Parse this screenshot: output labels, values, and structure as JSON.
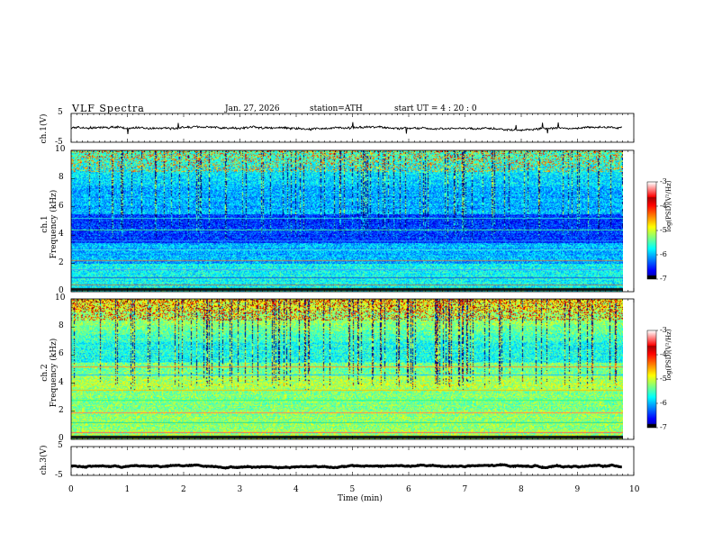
{
  "header": {
    "title": "VLF  Spectra",
    "date": "Jan. 27, 2026",
    "station": "station=ATH",
    "start": "start  UT  =   4  : 20 : 0"
  },
  "chart_data": [
    {
      "type": "line",
      "panel": "ch.1 voltage",
      "ylabel": "ch.1(V)",
      "ylim": [
        -5,
        5
      ],
      "yticks": [
        "5",
        "-5"
      ],
      "xlim": [
        0,
        10
      ],
      "description_values": {
        "baseline_level": 0,
        "noise_amplitude": 0.6
      }
    },
    {
      "type": "heatmap",
      "panel": "ch.1 spectrogram",
      "ylabel": "ch.1 Frequency (kHz)",
      "ylabel_top": "ch.1",
      "ylabel_bottom": "Frequency (kHz)",
      "ylim": [
        0,
        10
      ],
      "yticks": [
        "0",
        "2",
        "4",
        "6",
        "8",
        "10"
      ],
      "xlim": [
        0,
        10
      ],
      "data_end_min": 9.8,
      "colorbar": {
        "label": "log(PSD)(V²/Hz)",
        "ticks": [
          "-3",
          "-4",
          "-5",
          "-6",
          "-7"
        ],
        "range": [
          -7,
          -3
        ]
      }
    },
    {
      "type": "heatmap",
      "panel": "ch.2 spectrogram",
      "ylabel": "ch.2 Frequency (kHz)",
      "ylabel_top": "ch.2",
      "ylabel_bottom": "Frequency (kHz)",
      "ylim": [
        0,
        10
      ],
      "yticks": [
        "0",
        "2",
        "4",
        "6",
        "8",
        "10"
      ],
      "xlim": [
        0,
        10
      ],
      "data_end_min": 9.8,
      "colorbar": {
        "label": "log(PSD)(V²/Hz)",
        "ticks": [
          "-3",
          "-4",
          "-5",
          "-6",
          "-7"
        ],
        "range": [
          -7,
          -3
        ]
      }
    },
    {
      "type": "line",
      "panel": "ch.3 voltage",
      "ylabel": "ch.3(V)",
      "ylim": [
        -5,
        5
      ],
      "yticks": [
        "5",
        "-5"
      ],
      "xlim": [
        0,
        10
      ],
      "xlabel": "Time  (min)",
      "xticks": [
        "0",
        "1",
        "2",
        "3",
        "4",
        "5",
        "6",
        "7",
        "8",
        "9",
        "10"
      ],
      "description_values": {
        "baseline_level": -1.8,
        "noise_amplitude": 0.1
      }
    }
  ]
}
